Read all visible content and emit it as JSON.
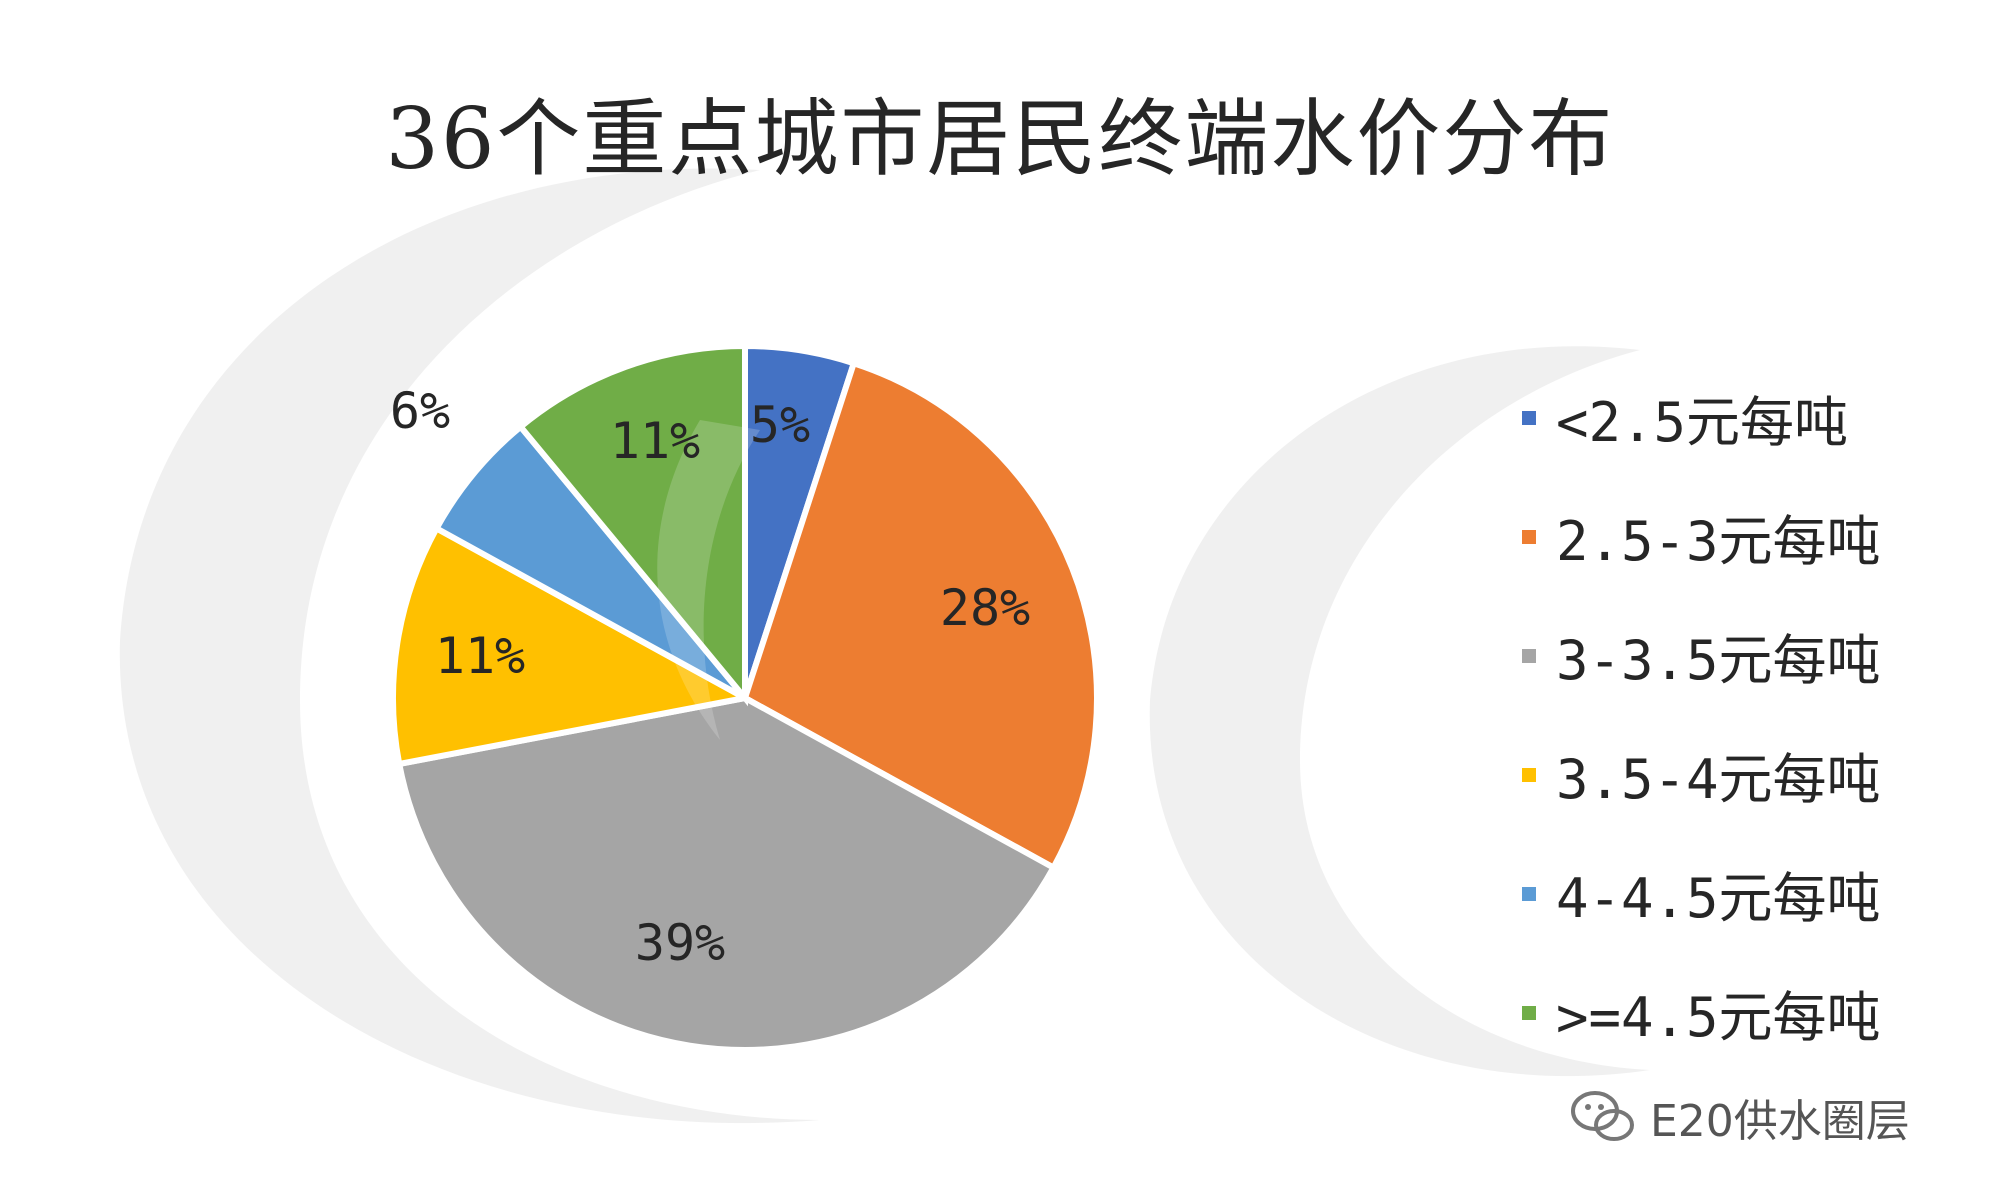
{
  "chart_data": {
    "type": "pie",
    "title": "36个重点城市居民终端水价分布",
    "slices": [
      {
        "label": "<2.5元每吨",
        "value": 5,
        "data_label": "5%",
        "color": "#4472C4"
      },
      {
        "label": "2.5-3元每吨",
        "value": 28,
        "data_label": "28%",
        "color": "#ED7D31"
      },
      {
        "label": "3-3.5元每吨",
        "value": 39,
        "data_label": "39%",
        "color": "#A5A5A5"
      },
      {
        "label": "3.5-4元每吨",
        "value": 11,
        "data_label": "11%",
        "color": "#FFC000"
      },
      {
        "label": "4-4.5元每吨",
        "value": 6,
        "data_label": "6%",
        "color": "#5B9BD5"
      },
      {
        "label": ">=4.5元每吨",
        "value": 11,
        "data_label": "11%",
        "color": "#70AD47"
      }
    ],
    "legend_position": "right",
    "start_angle_deg": 0,
    "direction": "clockwise"
  },
  "watermark": {
    "text": "E20供水圈层"
  }
}
